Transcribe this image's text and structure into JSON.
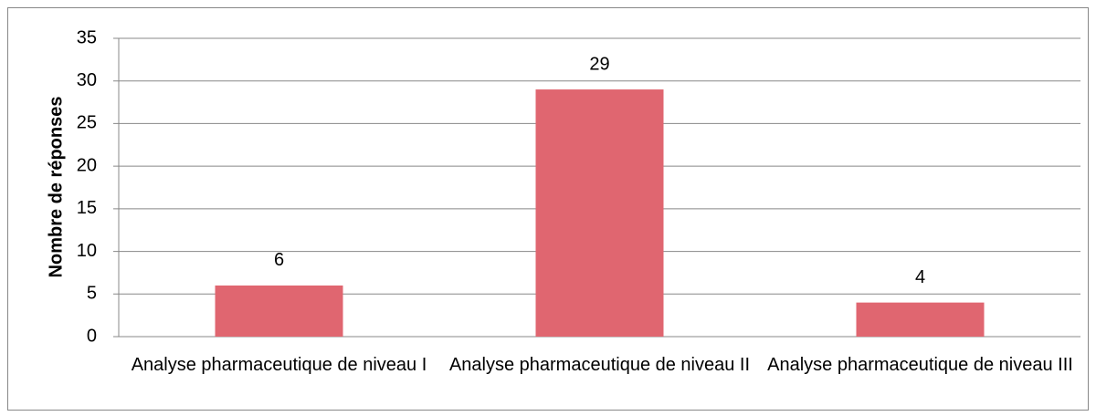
{
  "chart_data": {
    "type": "bar",
    "y_label": "Nombre de réponses",
    "categories": [
      "Analyse pharmaceutique de niveau I",
      "Analyse pharmaceutique de niveau II",
      "Analyse pharmaceutique de niveau III"
    ],
    "values": [
      6,
      29,
      4
    ],
    "color": "#e06670",
    "ylim": [
      0,
      35
    ],
    "yticks": [
      0,
      5,
      10,
      15,
      20,
      25,
      30,
      35
    ],
    "grid": true
  }
}
